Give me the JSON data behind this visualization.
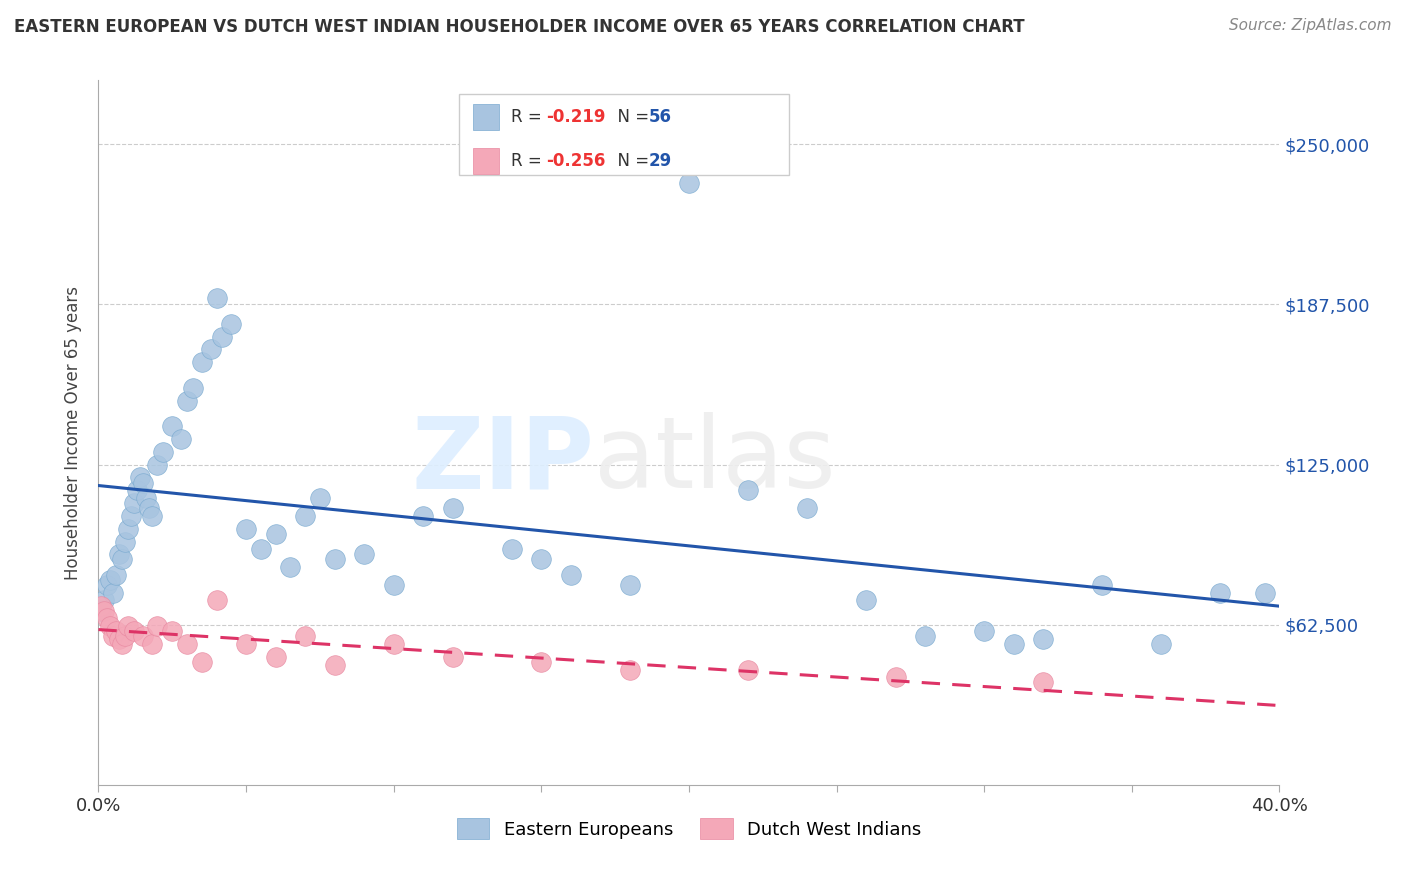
{
  "title": "EASTERN EUROPEAN VS DUTCH WEST INDIAN HOUSEHOLDER INCOME OVER 65 YEARS CORRELATION CHART",
  "source": "Source: ZipAtlas.com",
  "ylabel": "Householder Income Over 65 years",
  "ytick_labels": [
    "$62,500",
    "$125,000",
    "$187,500",
    "$250,000"
  ],
  "ytick_values": [
    62500,
    125000,
    187500,
    250000
  ],
  "ylim": [
    0,
    275000
  ],
  "xlim": [
    0.0,
    0.4
  ],
  "watermark_zip": "ZIP",
  "watermark_atlas": "atlas",
  "legend_blue_r": "R = ",
  "legend_blue_r_val": "-0.219",
  "legend_blue_n": "N = ",
  "legend_blue_n_val": "56",
  "legend_pink_r": "R = ",
  "legend_pink_r_val": "-0.256",
  "legend_pink_n": "N = ",
  "legend_pink_n_val": "29",
  "legend_blue_label": "Eastern Europeans",
  "legend_pink_label": "Dutch West Indians",
  "blue_color": "#A8C4E0",
  "blue_edge_color": "#7AAAD0",
  "pink_color": "#F4A8B8",
  "pink_edge_color": "#E888A0",
  "blue_line_color": "#2255AA",
  "pink_line_color": "#DD3366",
  "r_val_color": "#EE3333",
  "n_val_color": "#2255AA",
  "blue_x": [
    0.001,
    0.002,
    0.003,
    0.004,
    0.005,
    0.006,
    0.007,
    0.008,
    0.009,
    0.01,
    0.011,
    0.012,
    0.013,
    0.014,
    0.015,
    0.016,
    0.017,
    0.018,
    0.02,
    0.022,
    0.025,
    0.028,
    0.03,
    0.032,
    0.035,
    0.038,
    0.04,
    0.042,
    0.045,
    0.05,
    0.055,
    0.06,
    0.065,
    0.07,
    0.075,
    0.08,
    0.09,
    0.1,
    0.11,
    0.12,
    0.14,
    0.15,
    0.16,
    0.18,
    0.2,
    0.22,
    0.24,
    0.26,
    0.28,
    0.3,
    0.31,
    0.32,
    0.34,
    0.36,
    0.38,
    0.395
  ],
  "blue_y": [
    68000,
    72000,
    78000,
    80000,
    75000,
    82000,
    90000,
    88000,
    95000,
    100000,
    105000,
    110000,
    115000,
    120000,
    118000,
    112000,
    108000,
    105000,
    125000,
    130000,
    140000,
    135000,
    150000,
    155000,
    165000,
    170000,
    190000,
    175000,
    180000,
    100000,
    92000,
    98000,
    85000,
    105000,
    112000,
    88000,
    90000,
    78000,
    105000,
    108000,
    92000,
    88000,
    82000,
    78000,
    235000,
    115000,
    108000,
    72000,
    58000,
    60000,
    55000,
    57000,
    78000,
    55000,
    75000,
    75000
  ],
  "pink_x": [
    0.001,
    0.002,
    0.003,
    0.004,
    0.005,
    0.006,
    0.007,
    0.008,
    0.009,
    0.01,
    0.012,
    0.015,
    0.018,
    0.02,
    0.025,
    0.03,
    0.035,
    0.04,
    0.05,
    0.06,
    0.07,
    0.08,
    0.1,
    0.12,
    0.15,
    0.18,
    0.22,
    0.27,
    0.32
  ],
  "pink_y": [
    70000,
    68000,
    65000,
    62000,
    58000,
    60000,
    57000,
    55000,
    58000,
    62000,
    60000,
    58000,
    55000,
    62000,
    60000,
    55000,
    48000,
    72000,
    55000,
    50000,
    58000,
    47000,
    55000,
    50000,
    48000,
    45000,
    45000,
    42000,
    40000
  ]
}
